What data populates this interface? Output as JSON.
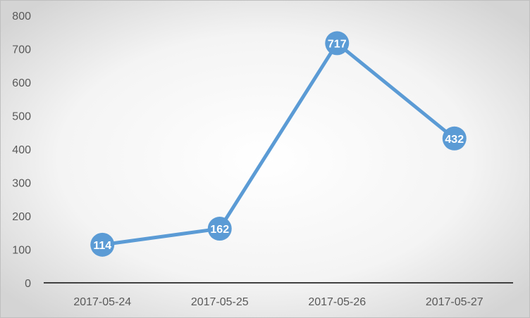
{
  "chart_data": {
    "type": "line",
    "title": "",
    "xlabel": "",
    "ylabel": "",
    "categories": [
      "2017-05-24",
      "2017-05-25",
      "2017-05-26",
      "2017-05-27"
    ],
    "values": [
      114,
      162,
      717,
      432
    ],
    "ylim": [
      0,
      800
    ],
    "yticks": [
      0,
      100,
      200,
      300,
      400,
      500,
      600,
      700,
      800
    ],
    "grid": false,
    "legend": "none",
    "data_labels": true,
    "colors": {
      "series": "#5b9bd5",
      "label_text": "#ffffff",
      "axis": "#404040",
      "tick_text": "#595959"
    }
  }
}
